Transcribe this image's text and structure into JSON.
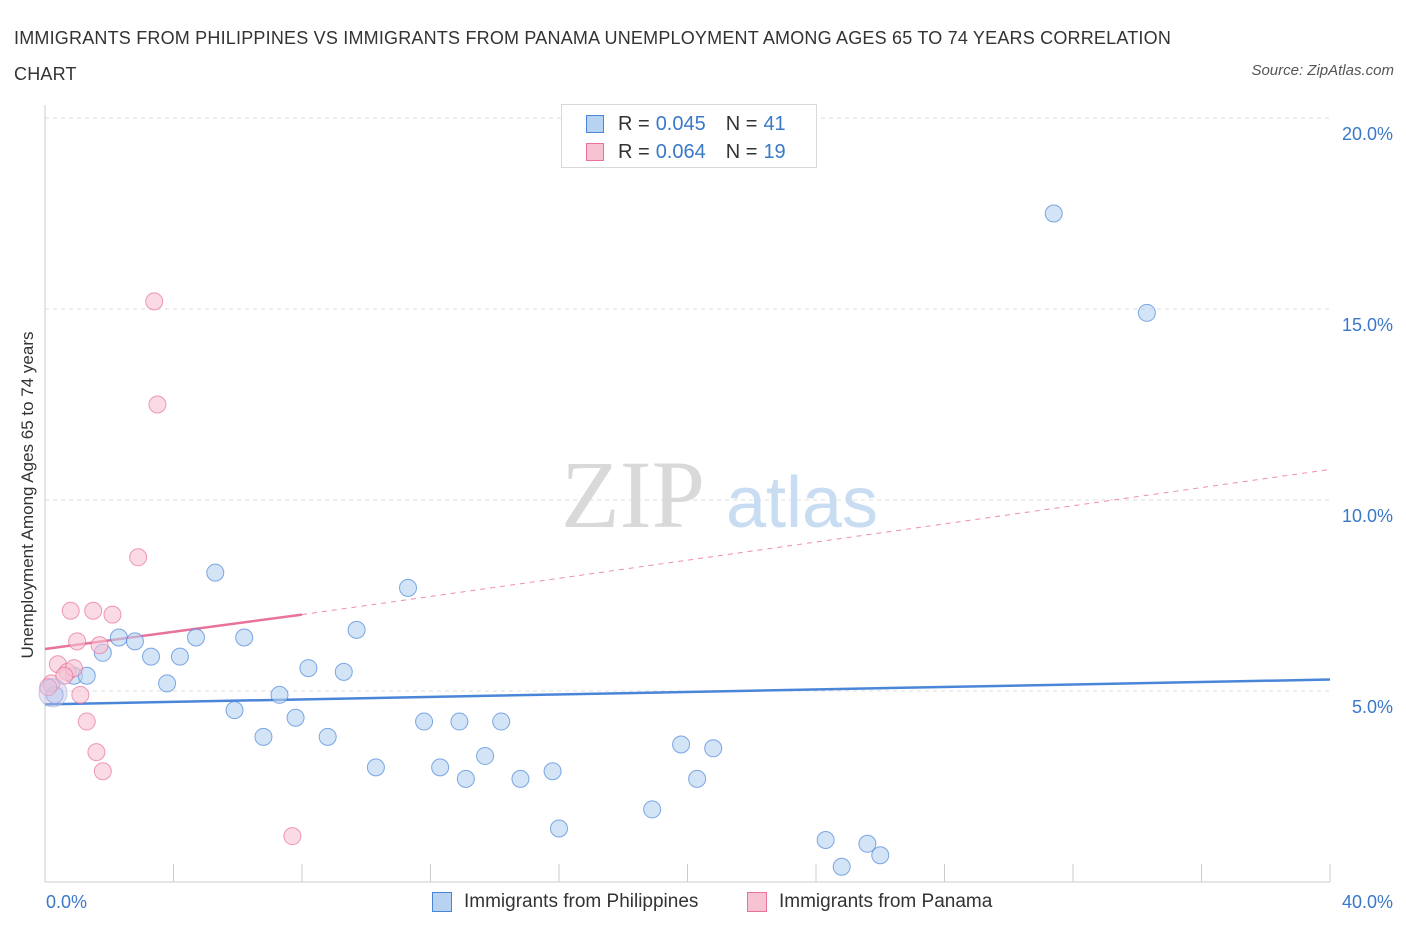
{
  "title": "IMMIGRANTS FROM PHILIPPINES VS IMMIGRANTS FROM PANAMA UNEMPLOYMENT AMONG AGES 65 TO 74 YEARS CORRELATION CHART",
  "source": "Source: ZipAtlas.com",
  "watermark": {
    "zip": "ZIP",
    "atlas": "atlas"
  },
  "legend": {
    "rows": [
      {
        "r_label": "R = ",
        "r_value": "0.045",
        "n_label": "N = ",
        "n_value": "41"
      },
      {
        "r_label": "R = ",
        "r_value": "0.064",
        "n_label": "N = ",
        "n_value": "19"
      }
    ]
  },
  "chart_data": {
    "type": "scatter",
    "title": "IMMIGRANTS FROM PHILIPPINES VS IMMIGRANTS FROM PANAMA UNEMPLOYMENT AMONG AGES 65 TO 74 YEARS CORRELATION CHART",
    "xlabel": "",
    "ylabel": "Unemployment Among Ages 65 to 74 years",
    "xlim": [
      0,
      40
    ],
    "ylim": [
      0,
      20
    ],
    "x_tick_labels": [
      "0.0%",
      "40.0%"
    ],
    "y_ticks": [
      5,
      10,
      15,
      20
    ],
    "y_tick_labels": [
      "5.0%",
      "10.0%",
      "15.0%",
      "20.0%"
    ],
    "grid": true,
    "series": [
      {
        "name": "Immigrants from Philippines",
        "color": "#4a86d8",
        "fill": "#b8d2f2",
        "R": 0.045,
        "N": 41,
        "trend": {
          "x": [
            0,
            40
          ],
          "y": [
            4.65,
            5.3
          ],
          "style": "solid"
        },
        "points": [
          [
            0.3,
            4.9
          ],
          [
            0.9,
            5.4
          ],
          [
            1.3,
            5.4
          ],
          [
            1.8,
            6.0
          ],
          [
            2.3,
            6.4
          ],
          [
            2.8,
            6.3
          ],
          [
            3.3,
            5.9
          ],
          [
            3.8,
            5.2
          ],
          [
            4.2,
            5.9
          ],
          [
            4.7,
            6.4
          ],
          [
            5.3,
            8.1
          ],
          [
            5.9,
            4.5
          ],
          [
            6.2,
            6.4
          ],
          [
            6.8,
            3.8
          ],
          [
            7.3,
            4.9
          ],
          [
            7.8,
            4.3
          ],
          [
            8.2,
            5.6
          ],
          [
            8.8,
            3.8
          ],
          [
            9.3,
            5.5
          ],
          [
            9.7,
            6.6
          ],
          [
            10.3,
            3.0
          ],
          [
            11.3,
            7.7
          ],
          [
            11.8,
            4.2
          ],
          [
            12.3,
            3.0
          ],
          [
            12.9,
            4.2
          ],
          [
            13.1,
            2.7
          ],
          [
            13.7,
            3.3
          ],
          [
            14.2,
            4.2
          ],
          [
            14.8,
            2.7
          ],
          [
            15.8,
            2.9
          ],
          [
            16.0,
            1.4
          ],
          [
            18.9,
            1.9
          ],
          [
            19.8,
            3.6
          ],
          [
            20.3,
            2.7
          ],
          [
            20.8,
            3.5
          ],
          [
            24.3,
            1.1
          ],
          [
            24.8,
            0.4
          ],
          [
            25.6,
            1.0
          ],
          [
            26.0,
            0.7
          ],
          [
            31.4,
            17.5
          ],
          [
            34.3,
            14.9
          ]
        ]
      },
      {
        "name": "Immigrants from Panama",
        "color": "#e8729a",
        "fill": "#f7c2d2",
        "R": 0.064,
        "N": 19,
        "trend": {
          "x": [
            0,
            8
          ],
          "y": [
            6.1,
            7.0
          ],
          "style": "solid",
          "extended_x": [
            8,
            40
          ],
          "extended_y": [
            7.0,
            10.8
          ],
          "extended_style": "dashed"
        },
        "points": [
          [
            0.2,
            5.2
          ],
          [
            0.4,
            5.7
          ],
          [
            0.7,
            5.5
          ],
          [
            0.8,
            7.1
          ],
          [
            0.9,
            5.6
          ],
          [
            1.0,
            6.3
          ],
          [
            1.1,
            4.9
          ],
          [
            1.3,
            4.2
          ],
          [
            1.5,
            7.1
          ],
          [
            1.6,
            3.4
          ],
          [
            1.7,
            6.2
          ],
          [
            1.8,
            2.9
          ],
          [
            2.1,
            7.0
          ],
          [
            2.9,
            8.5
          ],
          [
            3.4,
            15.2
          ],
          [
            3.5,
            12.5
          ],
          [
            7.7,
            1.2
          ],
          [
            0.1,
            5.1
          ],
          [
            0.6,
            5.4
          ]
        ]
      }
    ]
  }
}
